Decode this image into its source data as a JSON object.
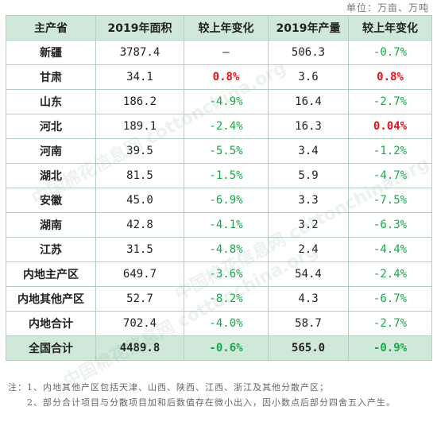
{
  "unit": "单位：万亩、万吨",
  "table": {
    "headers": [
      "主产省",
      "2019年面积",
      "较上年变化",
      "2019年产量",
      "较上年变化"
    ],
    "rows": [
      {
        "name": "新疆",
        "area": "3787.4",
        "area_change": "–",
        "area_dir": "neu",
        "output": "506.3",
        "output_change": "-0.7%",
        "output_dir": "neg"
      },
      {
        "name": "甘肃",
        "area": "34.1",
        "area_change": "0.8%",
        "area_dir": "pos",
        "output": "3.6",
        "output_change": "0.8%",
        "output_dir": "pos"
      },
      {
        "name": "山东",
        "area": "186.2",
        "area_change": "-4.9%",
        "area_dir": "neg",
        "output": "16.4",
        "output_change": "-2.7%",
        "output_dir": "neg"
      },
      {
        "name": "河北",
        "area": "189.1",
        "area_change": "-2.4%",
        "area_dir": "neg",
        "output": "16.3",
        "output_change": "0.04%",
        "output_dir": "pos"
      },
      {
        "name": "河南",
        "area": "39.5",
        "area_change": "-5.5%",
        "area_dir": "neg",
        "output": "3.4",
        "output_change": "-1.2%",
        "output_dir": "neg"
      },
      {
        "name": "湖北",
        "area": "81.5",
        "area_change": "-1.5%",
        "area_dir": "neg",
        "output": "5.9",
        "output_change": "-4.7%",
        "output_dir": "neg"
      },
      {
        "name": "安徽",
        "area": "45.0",
        "area_change": "-6.9%",
        "area_dir": "neg",
        "output": "3.3",
        "output_change": "-7.5%",
        "output_dir": "neg"
      },
      {
        "name": "湖南",
        "area": "42.8",
        "area_change": "-4.1%",
        "area_dir": "neg",
        "output": "3.2",
        "output_change": "-6.3%",
        "output_dir": "neg"
      },
      {
        "name": "江苏",
        "area": "31.5",
        "area_change": "-4.8%",
        "area_dir": "neg",
        "output": "2.4",
        "output_change": "-4.4%",
        "output_dir": "neg"
      },
      {
        "name": "内地主产区",
        "area": "649.7",
        "area_change": "-3.6%",
        "area_dir": "neg",
        "output": "54.4",
        "output_change": "-2.4%",
        "output_dir": "neg"
      },
      {
        "name": "内地其他产区",
        "area": "52.7",
        "area_change": "-8.2%",
        "area_dir": "neg",
        "output": "4.3",
        "output_change": "-6.7%",
        "output_dir": "neg"
      },
      {
        "name": "内地合计",
        "area": "702.4",
        "area_change": "-4.0%",
        "area_dir": "neg",
        "output": "58.7",
        "output_change": "-2.7%",
        "output_dir": "neg"
      }
    ],
    "total": {
      "name": "全国合计",
      "area": "4489.8",
      "area_change": "-0.6%",
      "area_dir": "neg",
      "output": "565.0",
      "output_change": "-0.9%",
      "output_dir": "neg"
    }
  },
  "notes": [
    "注：1、内地其他产区包括天津、山西、陕西、江西、浙江及其他分散产区；",
    "　　2、部分合计项目与分散项目加和后数值存在微小出入，因小数点后部分四舍五入产生。"
  ],
  "watermark": "中国棉花信息网 cottonchina.org",
  "colors": {
    "header_bg": "#cfe8da",
    "border": "#b4cfc0",
    "increase": "#e8101a",
    "decrease": "#18a84a"
  }
}
